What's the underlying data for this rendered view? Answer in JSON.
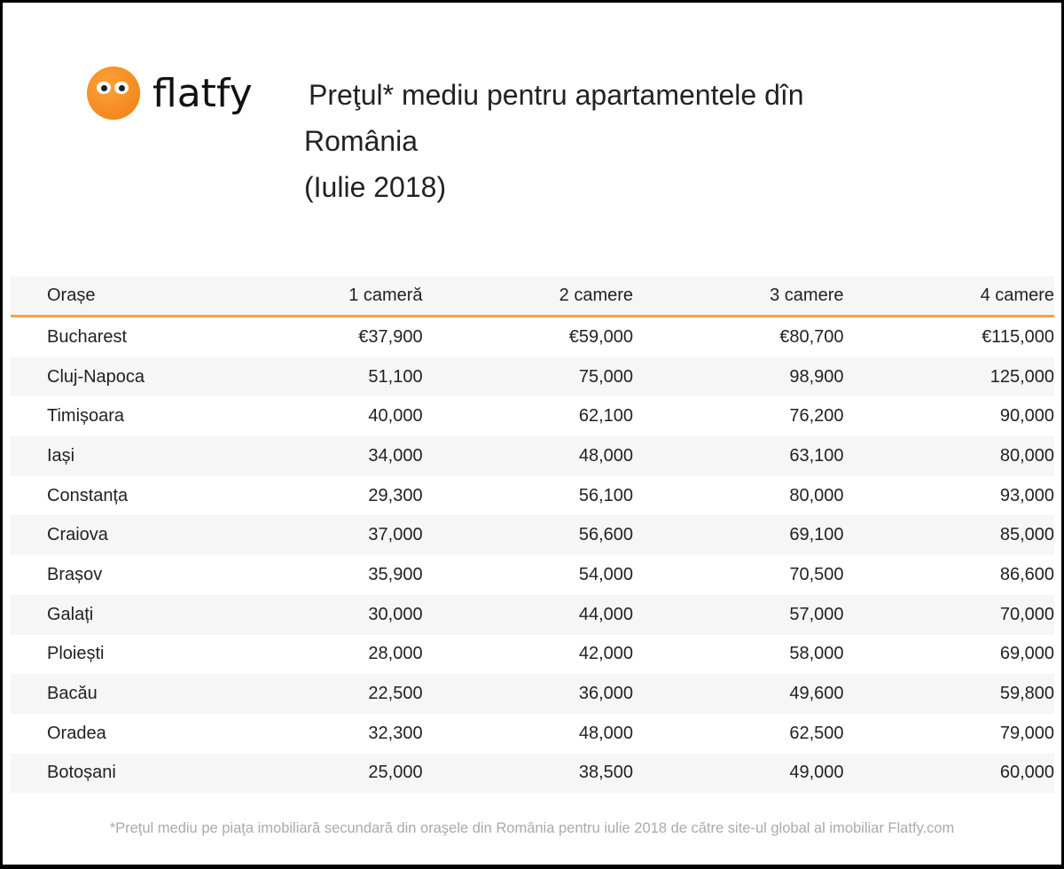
{
  "brand": {
    "name": "flatfy",
    "color": "#f28a1e"
  },
  "title": {
    "line1": "Preţul* mediu pentru apartamentele dîn",
    "line2": "România",
    "line3": "(Iulie 2018)"
  },
  "chart_data": {
    "type": "table",
    "title": "Preţul* mediu pentru apartamentele dîn România (Iulie 2018)",
    "columns": [
      "Orașe",
      "1 cameră",
      "2 camere",
      "3 camere",
      "4 camere"
    ],
    "rows": [
      [
        "Bucharest",
        "€37,900",
        "€59,000",
        "€80,700",
        "€115,000"
      ],
      [
        "Cluj-Napoca",
        "51,100",
        "75,000",
        "98,900",
        "125,000"
      ],
      [
        "Timișoara",
        "40,000",
        "62,100",
        "76,200",
        "90,000"
      ],
      [
        "Iași",
        "34,000",
        "48,000",
        "63,100",
        "80,000"
      ],
      [
        "Constanța",
        "29,300",
        "56,100",
        "80,000",
        "93,000"
      ],
      [
        "Craiova",
        "37,000",
        "56,600",
        "69,100",
        "85,000"
      ],
      [
        "Brașov",
        "35,900",
        "54,000",
        "70,500",
        "86,600"
      ],
      [
        "Galați",
        "30,000",
        "44,000",
        "57,000",
        "70,000"
      ],
      [
        "Ploiești",
        "28,000",
        "42,000",
        "58,000",
        "69,000"
      ],
      [
        "Bacău",
        "22,500",
        "36,000",
        "49,600",
        "59,800"
      ],
      [
        "Oradea",
        "32,300",
        "48,000",
        "62,500",
        "79,000"
      ],
      [
        "Botoșani",
        "25,000",
        "38,500",
        "49,000",
        "60,000"
      ]
    ],
    "accent_color": "#f4a24a"
  },
  "footnote": "*Preţul mediu pe piaţa imobiliară secundară din oraşele din România pentru iulie 2018 de către site-ul global al imobiliar Flatfy.com"
}
